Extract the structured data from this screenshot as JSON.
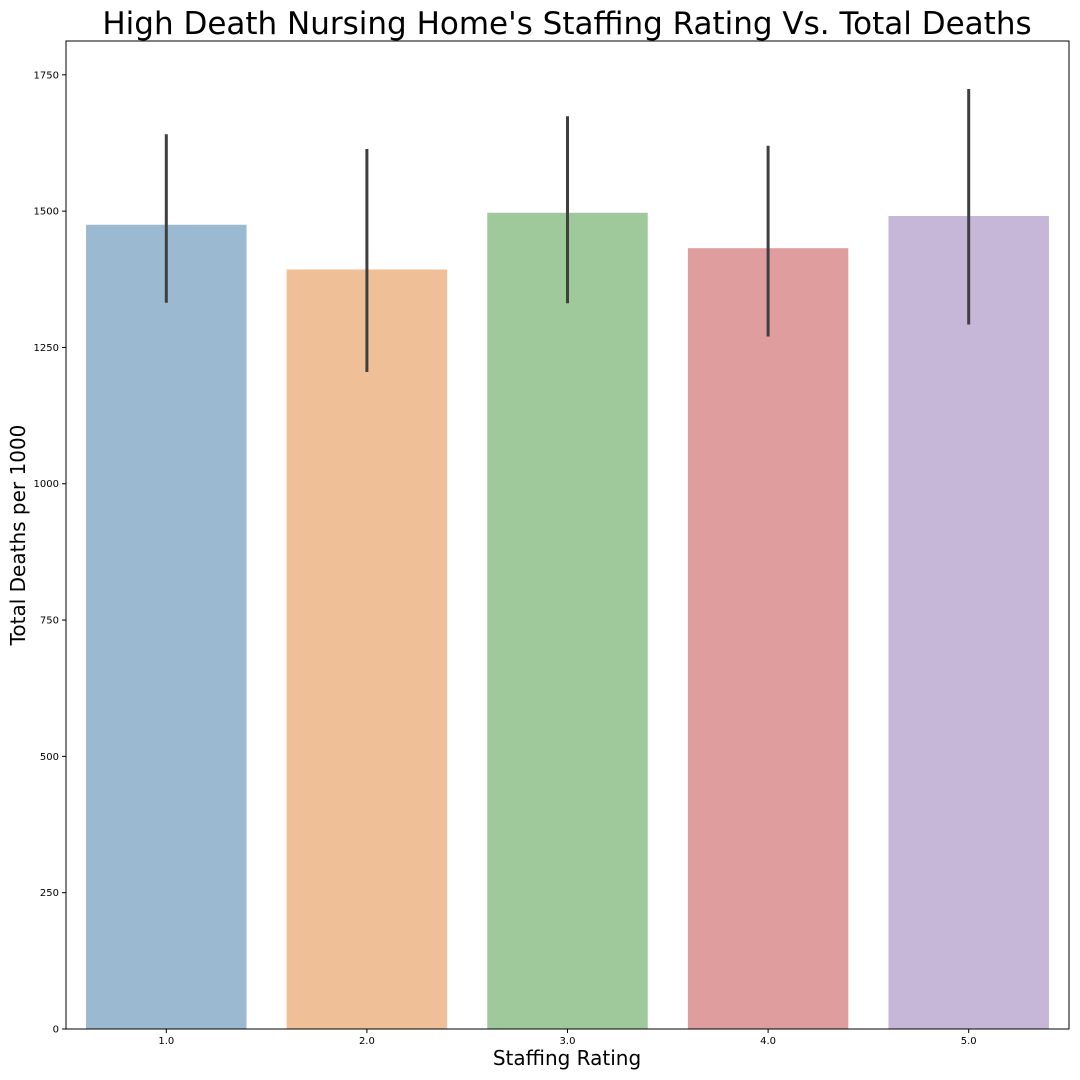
{
  "chart_data": {
    "type": "bar",
    "title": "High Death Nursing Home's Staffing Rating Vs. Total Deaths",
    "xlabel": "Staffing Rating",
    "ylabel": "Total Deaths per 1000",
    "categories": [
      "1.0",
      "2.0",
      "3.0",
      "4.0",
      "5.0"
    ],
    "values": [
      1475,
      1393,
      1497,
      1432,
      1491
    ],
    "error_low": [
      1332,
      1205,
      1331,
      1270,
      1292
    ],
    "error_high": [
      1641,
      1614,
      1674,
      1620,
      1724
    ],
    "colors": [
      "#9bb9d1",
      "#efc097",
      "#9fc99b",
      "#df9d9e",
      "#c6b7d8"
    ],
    "error_bar_color": "#3f3f3f",
    "ylim": [
      0,
      1812
    ],
    "yticks": [
      0,
      250,
      500,
      750,
      1000,
      1250,
      1500,
      1750
    ],
    "grid": false,
    "legend": false
  }
}
